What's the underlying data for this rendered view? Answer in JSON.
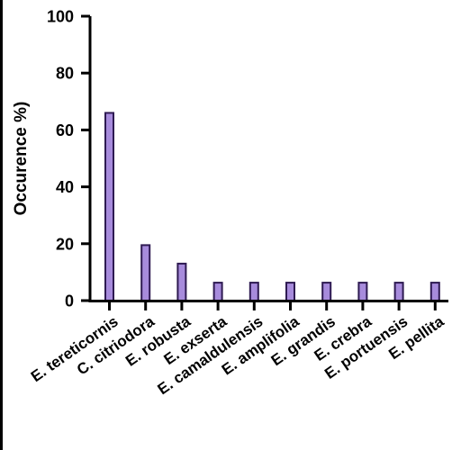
{
  "chart_data": {
    "type": "bar",
    "title": "",
    "xlabel": "",
    "ylabel": "Occurence %)",
    "ylim": [
      0,
      100
    ],
    "yticks": [
      0,
      20,
      40,
      60,
      80,
      100
    ],
    "grid": false,
    "categories": [
      "E. tereticornis",
      "C. citriodora",
      "E. robusta",
      "E. exserta",
      "E. camaldulensis",
      "E. amplifolia",
      "E. grandis",
      "E. crebra",
      "E. portuensis",
      "E. pellita"
    ],
    "values": [
      66,
      19.5,
      13,
      6.3,
      6.3,
      6.3,
      6.3,
      6.3,
      6.3,
      6.3
    ],
    "colors": {
      "bar_fill": "#a78bdc",
      "bar_stroke": "#2e1a52",
      "axis": "#000000"
    }
  }
}
